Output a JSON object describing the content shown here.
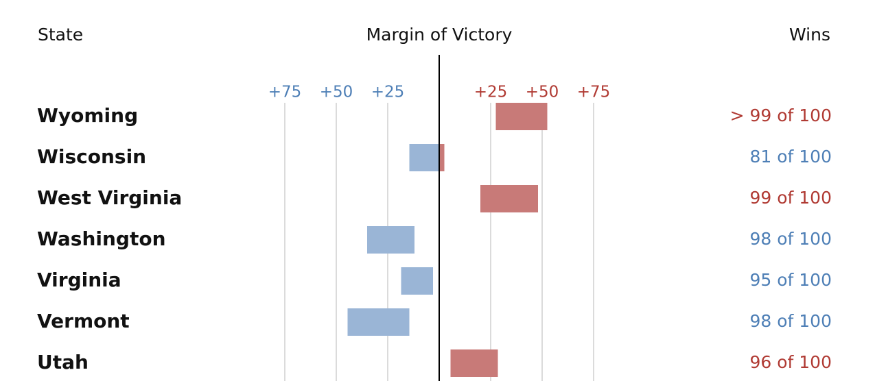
{
  "header": {
    "state": "State",
    "margin": "Margin of Victory",
    "wins": "Wins"
  },
  "colors": {
    "dem": "#4e7fb6",
    "rep": "#b03a33",
    "dem_bar": "#9ab5d6",
    "rep_bar": "#c87a78",
    "grid": "#cfcfcf",
    "axis": "#000000"
  },
  "chart_data": {
    "type": "bar",
    "orientation": "horizontal floating ranges (margin of victory)",
    "xlim": [
      -100,
      100
    ],
    "x_ticks": [
      {
        "value": -75,
        "label": "+75",
        "party": "dem"
      },
      {
        "value": -50,
        "label": "+50",
        "party": "dem"
      },
      {
        "value": -25,
        "label": "+25",
        "party": "dem"
      },
      {
        "value": 25,
        "label": "+25",
        "party": "rep"
      },
      {
        "value": 50,
        "label": "+50",
        "party": "rep"
      },
      {
        "value": 75,
        "label": "+75",
        "party": "rep"
      }
    ],
    "grid": true,
    "rows": [
      {
        "state": "Wyoming",
        "low": 27.5,
        "high": 52.5,
        "wins": "> 99 of 100",
        "winner": "rep"
      },
      {
        "state": "Wisconsin",
        "low": -14.5,
        "high": 2.5,
        "wins": "81 of 100",
        "winner": "dem"
      },
      {
        "state": "West Virginia",
        "low": 20,
        "high": 48,
        "wins": "99 of 100",
        "winner": "rep"
      },
      {
        "state": "Washington",
        "low": -35,
        "high": -12,
        "wins": "98 of 100",
        "winner": "dem"
      },
      {
        "state": "Virginia",
        "low": -18.5,
        "high": -3,
        "wins": "95 of 100",
        "winner": "dem"
      },
      {
        "state": "Vermont",
        "low": -44.5,
        "high": -14.5,
        "wins": "98 of 100",
        "winner": "dem"
      },
      {
        "state": "Utah",
        "low": 5.5,
        "high": 28.5,
        "wins": "96 of 100",
        "winner": "rep"
      }
    ]
  }
}
